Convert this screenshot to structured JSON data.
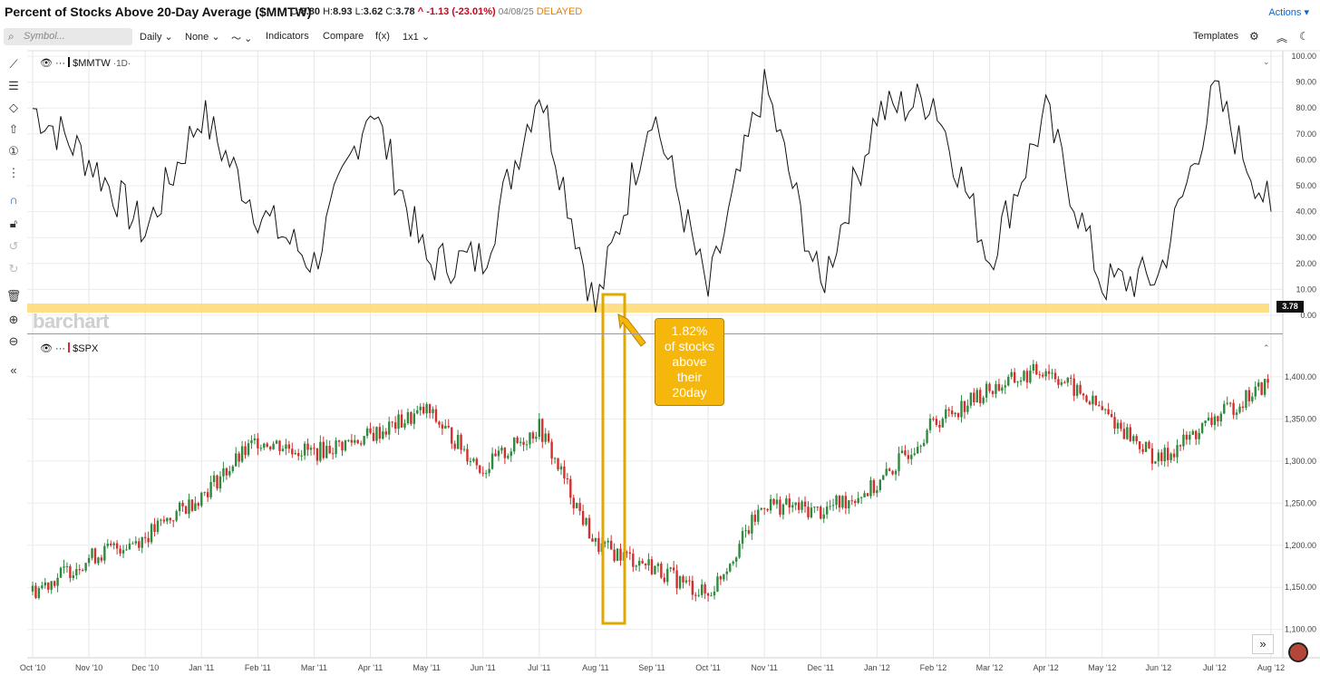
{
  "header": {
    "title": "Percent of Stocks Above 20-Day Average ($MMTW)",
    "open_label": "O:",
    "open": "8.80",
    "high_label": "H:",
    "high": "8.93",
    "low_label": "L:",
    "low": "3.62",
    "close_label": "C:",
    "close": "3.78",
    "change": "^ -1.13 (-23.01%)",
    "date": "04/08/25",
    "status": "DELAYED",
    "actions": "Actions"
  },
  "toolbar": {
    "search_placeholder": "Symbol...",
    "period": "Daily",
    "overlay": "None",
    "indicators": "Indicators",
    "compare": "Compare",
    "fx": "f(x)",
    "layout": "1x1",
    "templates": "Templates"
  },
  "panes": {
    "top_symbol": "$MMTW",
    "top_interval": "·1D·",
    "bottom_symbol": "$SPX",
    "last_value": "3.78",
    "watermark": "barchart"
  },
  "annotation": {
    "lines": [
      "1.82%",
      "of stocks",
      "above",
      "their",
      "20day"
    ]
  },
  "colors": {
    "up": "#2e8b3e",
    "down": "#d32f2f",
    "highlight": "#ffd970",
    "annotation": "#f5b70b",
    "accent": "#1565c0"
  },
  "chart_data": [
    {
      "type": "line",
      "title": "$MMTW",
      "ylim": [
        0,
        100
      ],
      "yticks": [
        "100.00",
        "90.00",
        "80.00",
        "70.00",
        "60.00",
        "50.00",
        "40.00",
        "30.00",
        "20.00",
        "10.00",
        "0.00"
      ],
      "x": [
        "Oct '10",
        "Nov '10",
        "Dec '10",
        "Jan '11",
        "Feb '11",
        "Mar '11",
        "Apr '11",
        "May '11",
        "Jun '11",
        "Jul '11",
        "Aug '11",
        "Sep '11",
        "Oct '11",
        "Nov '11",
        "Dec '11",
        "Jan '12",
        "Feb '12",
        "Mar '12",
        "Apr '12",
        "May '12",
        "Jun '12",
        "Jul '12",
        "Aug '12"
      ],
      "series": [
        {
          "name": "$MMTW",
          "values": [
            80,
            60,
            32,
            78,
            40,
            20,
            82,
            20,
            22,
            88,
            2,
            80,
            8,
            90,
            10,
            78,
            84,
            22,
            78,
            12,
            15,
            86,
            40
          ]
        }
      ],
      "horizontal_band": 5
    },
    {
      "type": "candlestick",
      "title": "$SPX",
      "ylim": [
        1090,
        1430
      ],
      "yticks": [
        "1,400.00",
        "1,350.00",
        "1,300.00",
        "1,250.00",
        "1,200.00",
        "1,150.00",
        "1,100.00"
      ],
      "x": [
        "Oct '10",
        "Nov '10",
        "Dec '10",
        "Jan '11",
        "Feb '11",
        "Mar '11",
        "Apr '11",
        "May '11",
        "Jun '11",
        "Jul '11",
        "Aug '11",
        "Sep '11",
        "Oct '11",
        "Nov '11",
        "Dec '11",
        "Jan '12",
        "Feb '12",
        "Mar '12",
        "Apr '12",
        "May '12",
        "Jun '12",
        "Jul '12",
        "Aug '12"
      ],
      "series": [
        {
          "name": "$SPX",
          "values": [
            1145,
            1185,
            1210,
            1260,
            1325,
            1310,
            1330,
            1360,
            1290,
            1340,
            1200,
            1175,
            1140,
            1250,
            1240,
            1270,
            1345,
            1385,
            1410,
            1360,
            1300,
            1350,
            1395
          ]
        }
      ]
    }
  ]
}
